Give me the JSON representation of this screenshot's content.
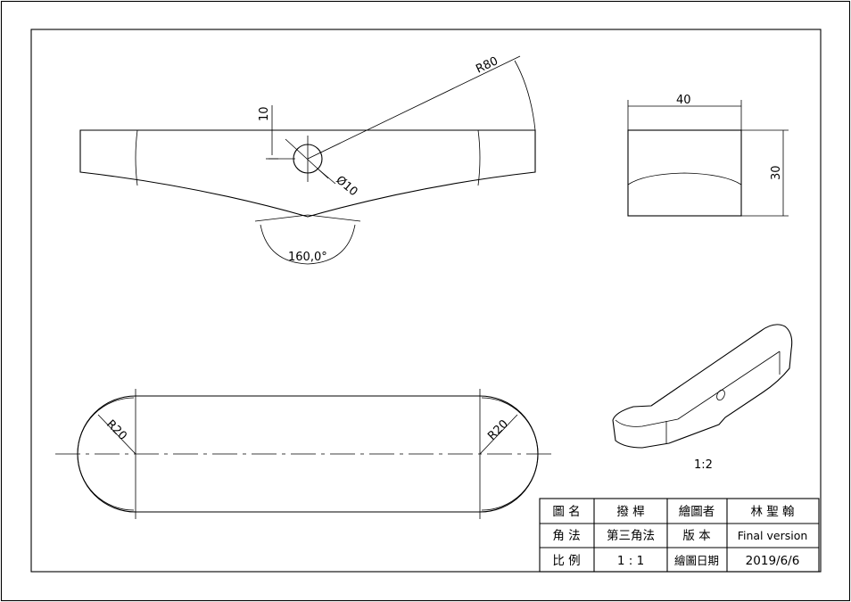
{
  "dimensions": {
    "r80": "R80",
    "d10": "Ø10",
    "ten": "10",
    "angle": "160,0°",
    "r20_left": "R20",
    "r20_right": "R20",
    "width40": "40",
    "height30": "30"
  },
  "iso_scale": "1:2",
  "title_block": {
    "rows": [
      [
        "圖 名",
        "撥 桿",
        "繪圖者",
        "林 聖 翰"
      ],
      [
        "角 法",
        "第三角法",
        "版 本",
        "Final version"
      ],
      [
        "比 例",
        "1 : 1",
        "繪圖日期",
        "2019/6/6"
      ]
    ]
  }
}
